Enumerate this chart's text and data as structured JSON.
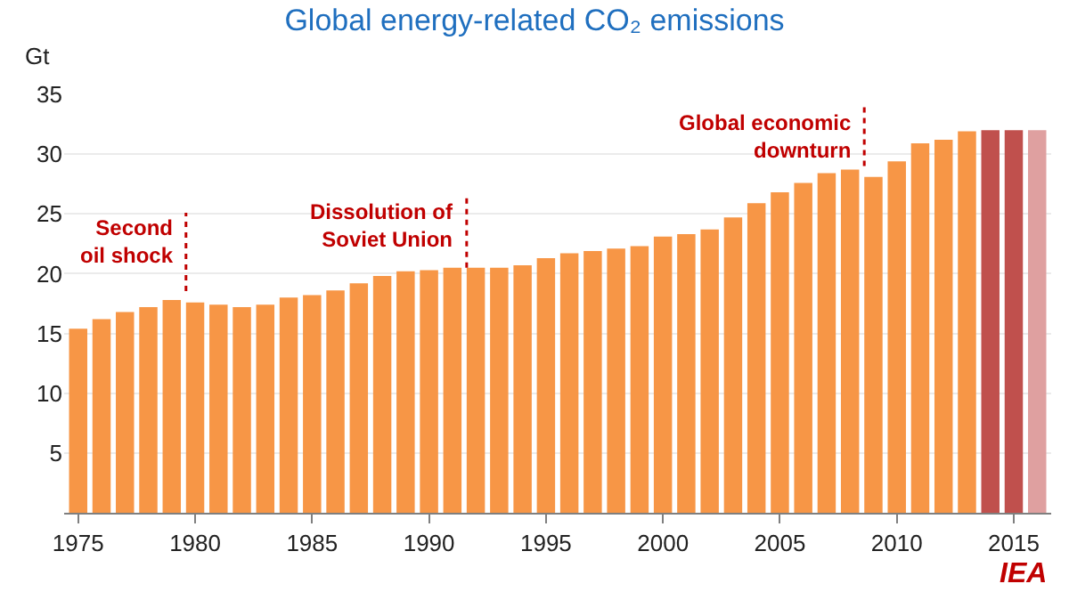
{
  "chart_data": {
    "type": "bar",
    "title": "Global energy-related CO₂ emissions",
    "ylabel": "Gt",
    "x": [
      1975,
      1976,
      1977,
      1978,
      1979,
      1980,
      1981,
      1982,
      1983,
      1984,
      1985,
      1986,
      1987,
      1988,
      1989,
      1990,
      1991,
      1992,
      1993,
      1994,
      1995,
      1996,
      1997,
      1998,
      1999,
      2000,
      2001,
      2002,
      2003,
      2004,
      2005,
      2006,
      2007,
      2008,
      2009,
      2010,
      2011,
      2012,
      2013,
      2014,
      2015,
      2016
    ],
    "values": [
      15.4,
      16.2,
      16.8,
      17.2,
      17.8,
      17.6,
      17.4,
      17.2,
      17.4,
      18.0,
      18.2,
      18.6,
      19.2,
      19.8,
      20.2,
      20.3,
      20.5,
      20.5,
      20.5,
      20.7,
      21.3,
      21.7,
      21.9,
      22.1,
      22.3,
      23.1,
      23.3,
      23.7,
      24.7,
      25.9,
      26.8,
      27.6,
      28.4,
      28.7,
      28.1,
      29.4,
      30.9,
      31.2,
      31.9,
      32.0,
      32.0,
      32.0
    ],
    "colors": [
      "#f79646",
      "#f79646",
      "#f79646",
      "#f79646",
      "#f79646",
      "#f79646",
      "#f79646",
      "#f79646",
      "#f79646",
      "#f79646",
      "#f79646",
      "#f79646",
      "#f79646",
      "#f79646",
      "#f79646",
      "#f79646",
      "#f79646",
      "#f79646",
      "#f79646",
      "#f79646",
      "#f79646",
      "#f79646",
      "#f79646",
      "#f79646",
      "#f79646",
      "#f79646",
      "#f79646",
      "#f79646",
      "#f79646",
      "#f79646",
      "#f79646",
      "#f79646",
      "#f79646",
      "#f79646",
      "#f79646",
      "#f79646",
      "#f79646",
      "#f79646",
      "#f79646",
      "#c0504d",
      "#c0504d",
      "#dfa0a0"
    ],
    "xlim": [
      1974.4,
      2016.6
    ],
    "xticks": [
      1975,
      1980,
      1985,
      1990,
      1995,
      2000,
      2005,
      2010,
      2015
    ],
    "ylim": [
      0,
      35
    ],
    "yticks": [
      5,
      10,
      15,
      20,
      25,
      30,
      35
    ],
    "grid": "y",
    "annotations": [
      {
        "text": "Second\noil shock",
        "x": 1979,
        "y": 17.8
      },
      {
        "text": "Dissolution of\nSoviet Union",
        "x": 1991,
        "y": 20.5
      },
      {
        "text": "Global economic\ndownturn",
        "x": 2008,
        "y": 28.7
      },
      "IEA"
    ]
  }
}
